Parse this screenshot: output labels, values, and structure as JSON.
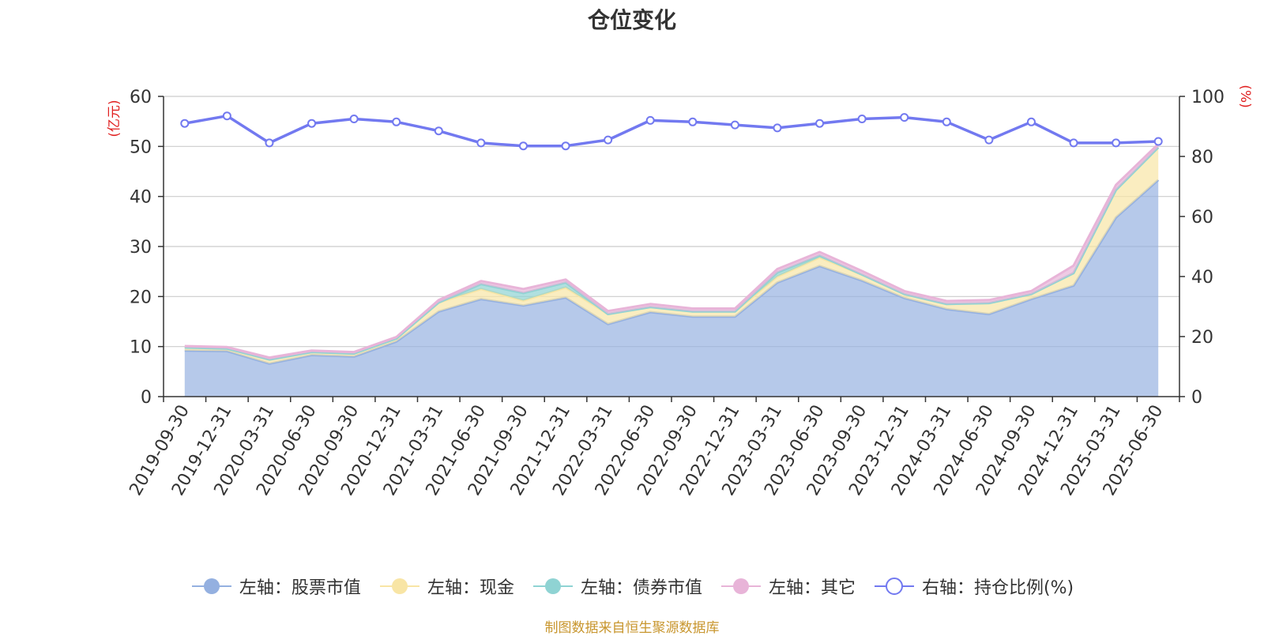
{
  "chart_data": {
    "type": "area",
    "title": "仓位变化",
    "categories": [
      "2019-09-30",
      "2019-12-31",
      "2020-03-31",
      "2020-06-30",
      "2020-09-30",
      "2020-12-31",
      "2021-03-31",
      "2021-06-30",
      "2021-09-30",
      "2021-12-31",
      "2022-03-31",
      "2022-06-30",
      "2022-09-30",
      "2022-12-31",
      "2023-03-31",
      "2023-06-30",
      "2023-09-30",
      "2023-12-31",
      "2024-03-31",
      "2024-06-30",
      "2024-09-30",
      "2024-12-31",
      "2025-03-31",
      "2025-06-30"
    ],
    "y_left": {
      "unit_label": "(亿元)",
      "min": 0,
      "max": 60,
      "ticks": [
        0,
        10,
        20,
        30,
        40,
        50,
        60
      ]
    },
    "y_right": {
      "unit_label": "(%)",
      "min": 0,
      "max": 100,
      "ticks": [
        0,
        20,
        40,
        60,
        80,
        100
      ]
    },
    "series": [
      {
        "name": "左轴：股票市值",
        "axis": "left",
        "stack": true,
        "color": "#94b0e0",
        "values": [
          9.2,
          9.1,
          6.6,
          8.3,
          8.0,
          11.0,
          17.0,
          19.5,
          18.2,
          19.8,
          14.5,
          16.9,
          16.0,
          16.0,
          22.8,
          26.1,
          23.2,
          19.7,
          17.5,
          16.5,
          19.5,
          22.2,
          35.8,
          43.3
        ]
      },
      {
        "name": "左轴：现金",
        "axis": "left",
        "stack": true,
        "color": "#f8e5a5",
        "values": [
          0.6,
          0.5,
          0.8,
          0.6,
          0.6,
          0.6,
          1.8,
          2.0,
          1.0,
          2.0,
          2.0,
          1.0,
          1.0,
          1.0,
          1.2,
          1.7,
          1.2,
          0.8,
          1.0,
          2.2,
          1.0,
          2.5,
          5.5,
          6.5
        ]
      },
      {
        "name": "左轴：债券市值",
        "axis": "left",
        "stack": true,
        "color": "#8fd3d3",
        "values": [
          0,
          0,
          0,
          0,
          0,
          0,
          0,
          1.0,
          1.5,
          1.0,
          0,
          0,
          0,
          0,
          0.8,
          0.4,
          0,
          0,
          0,
          0,
          0,
          0,
          0,
          0
        ]
      },
      {
        "name": "左轴：其它",
        "axis": "left",
        "stack": true,
        "color": "#e8b4d8",
        "values": [
          0.3,
          0.3,
          0.4,
          0.3,
          0.3,
          0.3,
          0.5,
          0.6,
          0.8,
          0.6,
          0.6,
          0.6,
          0.6,
          0.6,
          0.7,
          0.7,
          0.7,
          0.6,
          0.6,
          0.6,
          0.6,
          1.5,
          1.0,
          0.7
        ]
      },
      {
        "name": "右轴：持仓比例(%)",
        "axis": "right",
        "stack": false,
        "color": "#7279f0",
        "values": [
          91.0,
          93.5,
          84.5,
          91.0,
          92.5,
          91.5,
          88.5,
          84.5,
          83.5,
          83.5,
          85.5,
          92.0,
          91.5,
          90.5,
          89.5,
          91.0,
          92.5,
          93.0,
          91.5,
          85.5,
          91.5,
          84.5,
          84.5,
          85.0
        ]
      }
    ],
    "grid": true,
    "legend_position": "bottom"
  },
  "footer": {
    "source": "制图数据来自恒生聚源数据库"
  }
}
